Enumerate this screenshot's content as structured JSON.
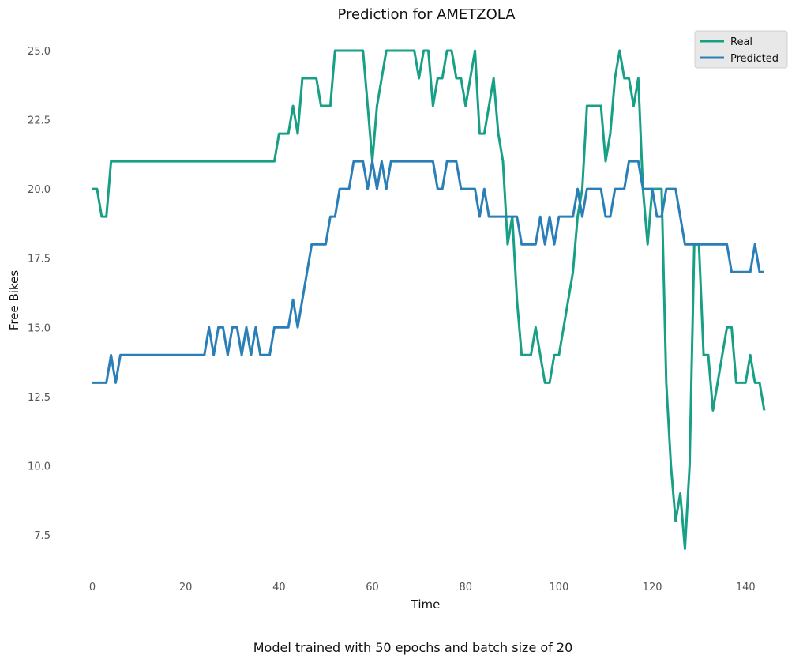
{
  "chart_data": {
    "type": "line",
    "title": "Prediction for AMETZOLA",
    "xlabel": "Time",
    "ylabel": "Free Bikes",
    "xlim": [
      -2,
      145
    ],
    "ylim": [
      6.0,
      26.0
    ],
    "x_ticks": [
      0,
      20,
      40,
      60,
      80,
      100,
      120,
      140
    ],
    "y_ticks": [
      7.5,
      10.0,
      12.5,
      15.0,
      17.5,
      20.0,
      22.5,
      25.0
    ],
    "grid": false,
    "legend_position": "top-right",
    "series": [
      {
        "name": "Real",
        "color": "#17a085",
        "values": [
          20,
          20,
          19,
          19,
          21,
          21,
          21,
          21,
          21,
          21,
          21,
          21,
          21,
          21,
          21,
          21,
          21,
          21,
          21,
          21,
          21,
          21,
          21,
          21,
          21,
          21,
          21,
          21,
          21,
          21,
          21,
          21,
          21,
          21,
          21,
          21,
          21,
          21,
          21,
          21,
          22,
          22,
          22,
          23,
          22,
          24,
          24,
          24,
          24,
          23,
          23,
          23,
          25,
          25,
          25,
          25,
          25,
          25,
          25,
          23,
          21,
          23,
          24,
          25,
          25,
          25,
          25,
          25,
          25,
          25,
          24,
          25,
          25,
          23,
          24,
          24,
          25,
          25,
          24,
          24,
          23,
          24,
          25,
          22,
          22,
          23,
          24,
          22,
          21,
          18,
          19,
          16,
          14,
          14,
          14,
          15,
          14,
          13,
          13,
          14,
          14,
          15,
          16,
          17,
          19,
          20,
          23,
          23,
          23,
          23,
          21,
          22,
          24,
          25,
          24,
          24,
          23,
          24,
          20,
          18,
          20,
          20,
          20,
          13,
          10,
          8,
          9,
          7,
          10,
          18,
          18,
          14,
          14,
          12,
          13,
          14,
          15,
          15,
          13,
          13,
          13,
          14,
          13,
          13,
          12
        ]
      },
      {
        "name": "Predicted",
        "color": "#2b7fb8",
        "values": [
          13,
          13,
          13,
          13,
          14,
          13,
          14,
          14,
          14,
          14,
          14,
          14,
          14,
          14,
          14,
          14,
          14,
          14,
          14,
          14,
          14,
          14,
          14,
          14,
          14,
          15,
          14,
          15,
          15,
          14,
          15,
          15,
          14,
          15,
          14,
          15,
          14,
          14,
          14,
          15,
          15,
          15,
          15,
          16,
          15,
          16,
          17,
          18,
          18,
          18,
          18,
          19,
          19,
          20,
          20,
          20,
          21,
          21,
          21,
          20,
          21,
          20,
          21,
          20,
          21,
          21,
          21,
          21,
          21,
          21,
          21,
          21,
          21,
          21,
          20,
          20,
          21,
          21,
          21,
          20,
          20,
          20,
          20,
          19,
          20,
          19,
          19,
          19,
          19,
          19,
          19,
          19,
          18,
          18,
          18,
          18,
          19,
          18,
          19,
          18,
          19,
          19,
          19,
          19,
          20,
          19,
          20,
          20,
          20,
          20,
          19,
          19,
          20,
          20,
          20,
          21,
          21,
          21,
          20,
          20,
          20,
          19,
          19,
          20,
          20,
          20,
          19,
          18,
          18,
          18,
          18,
          18,
          18,
          18,
          18,
          18,
          18,
          17,
          17,
          17,
          17,
          17,
          18,
          17,
          17
        ]
      }
    ]
  },
  "caption": "Model trained with 50 epochs and batch size of 20"
}
